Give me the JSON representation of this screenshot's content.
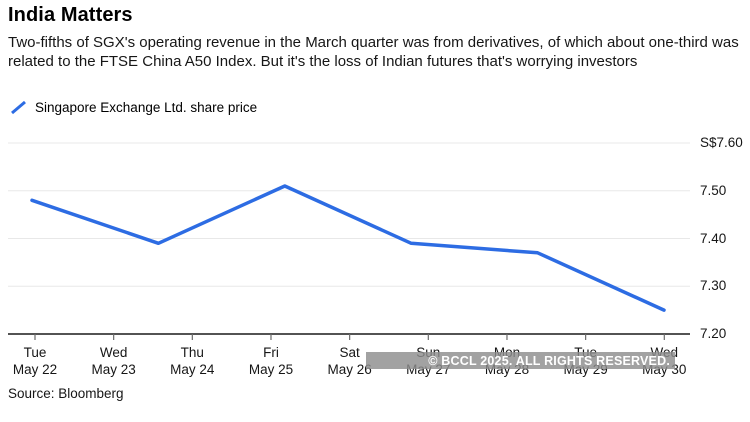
{
  "header": {
    "title": "India Matters",
    "subtitle": "Two-fifths of SGX's operating revenue in the March quarter was from derivatives, of which about one-third was related to the FTSE China A50 Index. But it's the loss of Indian futures that's worrying investors"
  },
  "legend": {
    "icon": "line-swatch-icon",
    "label": "Singapore Exchange Ltd. share price"
  },
  "chart_data": {
    "type": "line",
    "title": "Singapore Exchange Ltd. share price",
    "currency_prefix": "S$",
    "y_tick_labels": [
      "S$7.60",
      "7.50",
      "7.40",
      "7.30",
      "7.20"
    ],
    "ylim": [
      7.2,
      7.6
    ],
    "grid": "horizontal",
    "legend_position": "top-left",
    "x_ticks": [
      {
        "day": "Tue",
        "date": "May 22"
      },
      {
        "day": "Wed",
        "date": "May 23"
      },
      {
        "day": "Thu",
        "date": "May 24"
      },
      {
        "day": "Fri",
        "date": "May 25"
      },
      {
        "day": "Sat",
        "date": "May 26"
      },
      {
        "day": "Sun",
        "date": "May 27"
      },
      {
        "day": "Mon",
        "date": "May 28"
      },
      {
        "day": "Tue",
        "date": "May 29"
      },
      {
        "day": "Wed",
        "date": "May 30"
      }
    ],
    "series": [
      {
        "name": "Singapore Exchange Ltd. share price",
        "color": "#2d6ce3",
        "values": [
          7.48,
          7.39,
          7.51,
          7.39,
          7.37,
          7.25
        ],
        "x_positions_frac": [
          0,
          0.2,
          0.4,
          0.6,
          0.8,
          1.0
        ]
      }
    ],
    "axis_color": "#1a1a1a",
    "gridline_color": "#e8e8e8",
    "tick_color": "#6b6b6b"
  },
  "watermark": {
    "text": "© BCCL 2025. ALL RIGHTS RESERVED."
  },
  "source": {
    "text": "Source: Bloomberg"
  }
}
